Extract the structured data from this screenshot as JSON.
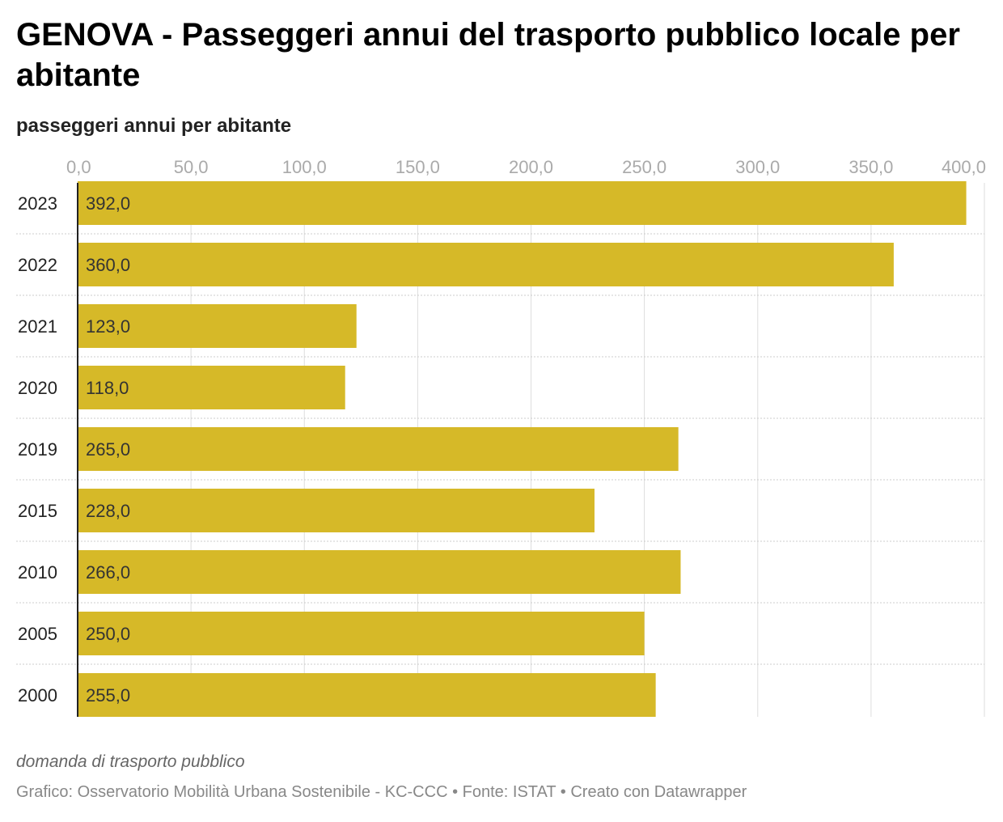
{
  "title": "GENOVA - Passeggeri annui del trasporto pubblico locale per abitante",
  "subtitle": "passeggeri annui per abitante",
  "notes": "domanda di trasporto pubblico",
  "footer": "Grafico: Osservatorio Mobilità Urbana Sostenibile - KC-CCC  • Fonte: ISTAT • Creato con Datawrapper",
  "colors": {
    "bar": "#d6b928",
    "grid": "#dddddd",
    "axis": "#222222"
  },
  "chart_data": {
    "type": "bar",
    "orientation": "horizontal",
    "categories": [
      "2023",
      "2022",
      "2021",
      "2020",
      "2019",
      "2015",
      "2010",
      "2005",
      "2000"
    ],
    "series": [
      {
        "values": [
          392,
          360,
          123,
          118,
          265,
          228,
          266,
          250,
          255
        ]
      }
    ],
    "value_labels": [
      "392,0",
      "360,0",
      "123,0",
      "118,0",
      "265,0",
      "228,0",
      "266,0",
      "250,0",
      "255,0"
    ],
    "xlim": [
      0,
      400
    ],
    "x_ticks": [
      0,
      50,
      100,
      150,
      200,
      250,
      300,
      350,
      400
    ],
    "x_tick_labels": [
      "0,0",
      "50,0",
      "100,0",
      "150,0",
      "200,0",
      "250,0",
      "300,0",
      "350,0",
      "400,0"
    ],
    "tick_position": "top",
    "grid": true
  }
}
